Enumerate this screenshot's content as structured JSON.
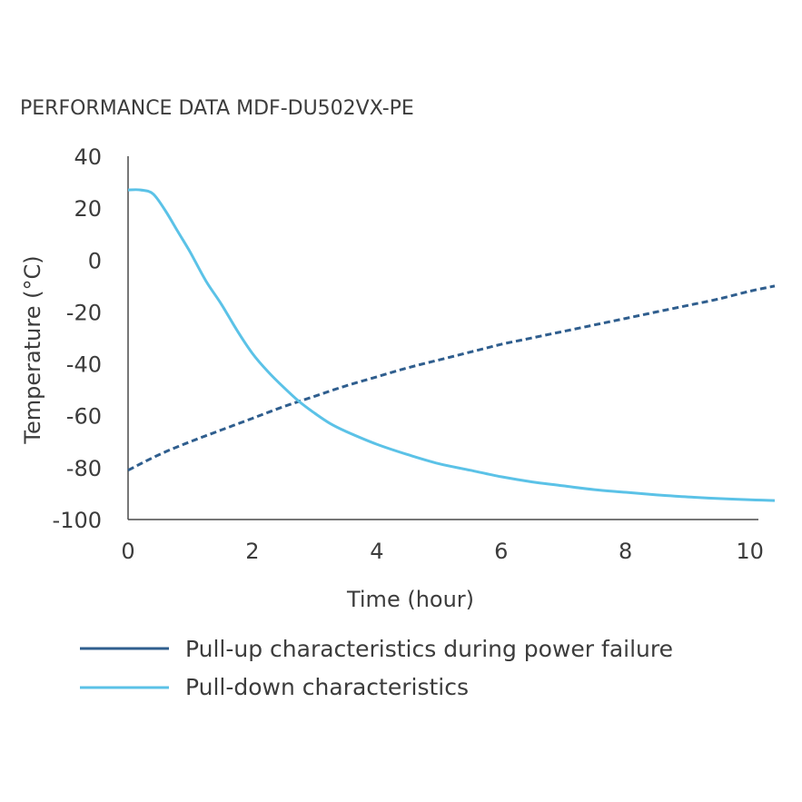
{
  "chart_data": {
    "type": "line",
    "title": "PERFORMANCE DATA MDF-DU502VX-PE",
    "xlabel": "Time (hour)",
    "ylabel": "Temperature (°C)",
    "xlim": [
      0,
      10.4
    ],
    "ylim": [
      -100,
      40
    ],
    "xticks": [
      0,
      2,
      4,
      6,
      8,
      10
    ],
    "yticks": [
      40,
      20,
      0,
      -20,
      -40,
      -60,
      -80,
      -100
    ],
    "grid": false,
    "legend_position": "bottom",
    "series": [
      {
        "name": "Pull-up characteristics during power failure",
        "color": "#2f5e8e",
        "style": "dashed",
        "x": [
          0,
          0.5,
          1,
          1.5,
          2,
          2.5,
          3,
          3.5,
          4,
          4.5,
          5,
          5.5,
          6,
          6.5,
          7,
          7.5,
          8,
          8.5,
          9,
          9.5,
          10,
          10.4
        ],
        "y": [
          -81,
          -75,
          -70,
          -65.5,
          -61,
          -56.5,
          -52.5,
          -48.5,
          -45,
          -41.5,
          -38.5,
          -35.5,
          -32.5,
          -30,
          -27.5,
          -25,
          -22.5,
          -20,
          -17.5,
          -15,
          -12,
          -10
        ]
      },
      {
        "name": "Pull-down characteristics",
        "color": "#5bc2e7",
        "style": "solid",
        "x": [
          0,
          0.2,
          0.4,
          0.6,
          0.8,
          1,
          1.25,
          1.5,
          1.75,
          2,
          2.25,
          2.5,
          2.75,
          3,
          3.25,
          3.5,
          4,
          4.5,
          5,
          5.5,
          6,
          6.5,
          7,
          7.5,
          8,
          8.5,
          9,
          9.5,
          10,
          10.4
        ],
        "y": [
          27,
          27,
          25.5,
          19,
          11,
          3,
          -8,
          -17,
          -27,
          -36,
          -43,
          -49,
          -54.5,
          -59,
          -63,
          -66,
          -71,
          -75,
          -78.5,
          -81,
          -83.5,
          -85.5,
          -87,
          -88.5,
          -89.5,
          -90.5,
          -91.3,
          -91.9,
          -92.4,
          -92.7
        ]
      }
    ]
  }
}
